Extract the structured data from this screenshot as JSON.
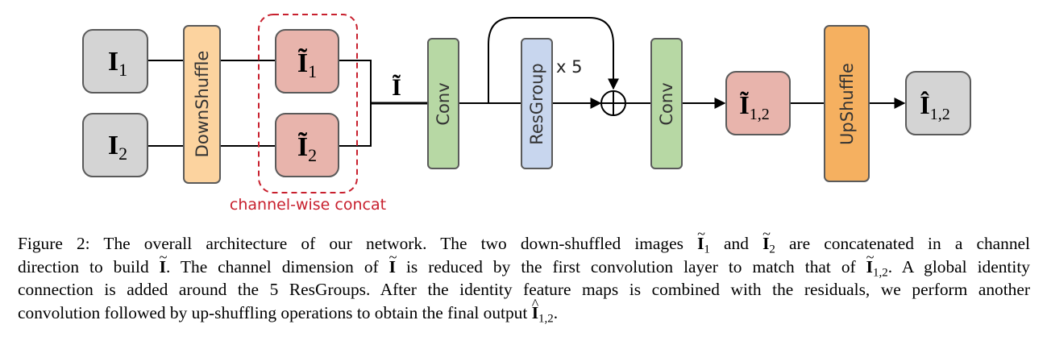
{
  "diagram": {
    "inputs": [
      {
        "symbol": "I",
        "sub": "1"
      },
      {
        "symbol": "I",
        "sub": "2"
      }
    ],
    "downshuffle_label": "DownShuffle",
    "shuffled": [
      {
        "symbol": "Ĩ",
        "sub": "1"
      },
      {
        "symbol": "Ĩ",
        "sub": "2"
      }
    ],
    "concat_label": "channel-wise concat",
    "concat_symbol": "Ĩ",
    "conv1_label": "Conv",
    "resgroup_label": "ResGroup",
    "repeat_label": "x 5",
    "conv2_label": "Conv",
    "feature": {
      "symbol": "Ĩ",
      "sub": "1,2"
    },
    "upshuffle_label": "UpShuffle",
    "output": {
      "symbol": "Î",
      "sub": "1,2"
    },
    "colors": {
      "input_box": "#d4d4d4",
      "downshuffle": "#fcd39f",
      "shuffled_box": "#e8b4ac",
      "conv": "#b7d8a4",
      "resgroup": "#c8d6ee",
      "upshuffle": "#f5b060",
      "concat_border": "#c8202e",
      "border": "#5a5a5a"
    }
  },
  "caption": {
    "label": "Figure 2:",
    "s1a": "The overall architecture of our network. The two down-shuffled images",
    "s1b": "and",
    "s1c": "are concatenated in a channel",
    "s2a": "direction to build",
    "s2b": ". The channel dimension of",
    "s2c": "is reduced by the first convolution layer to match that of",
    "s2d": ". A global identity",
    "s3": "connection is added around the 5 ResGroups. After the identity feature maps is combined with the residuals, we perform another",
    "s4a": "convolution followed by up-shuffling operations to obtain the final output",
    "s4b": ".",
    "sym_I": "I",
    "sub_1": "1",
    "sub_2": "2",
    "sub_12": "1,2"
  }
}
